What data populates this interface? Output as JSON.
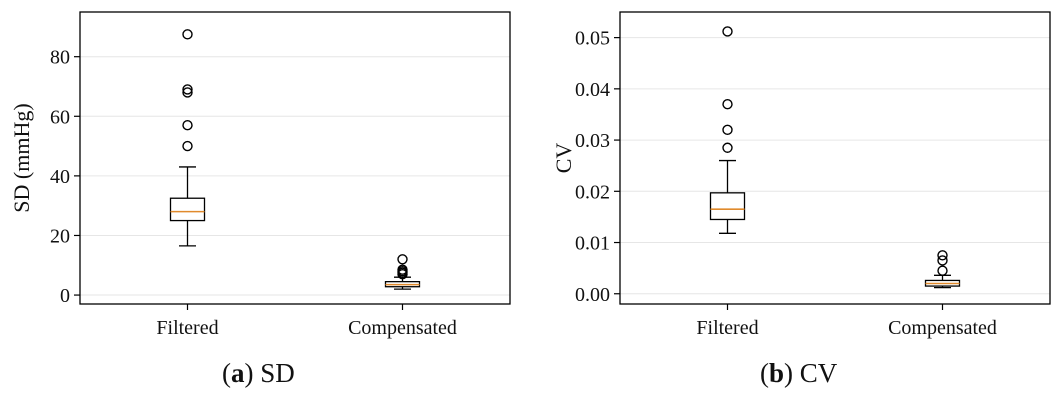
{
  "colors": {
    "median": "#e08a2c",
    "box": "#000000",
    "grid": "#e6e6e6"
  },
  "captions": [
    {
      "letter": "a",
      "text": "SD"
    },
    {
      "letter": "b",
      "text": "CV"
    }
  ],
  "chart_data": [
    {
      "type": "box",
      "title": "",
      "xlabel": "",
      "ylabel": "SD (mmHg)",
      "categories": [
        "Filtered",
        "Compensated"
      ],
      "ylim": [
        -3,
        95
      ],
      "yticks": [
        0,
        20,
        40,
        60,
        80
      ],
      "ytick_labels": [
        "0",
        "20",
        "40",
        "60",
        "80"
      ],
      "grid": true,
      "boxes": [
        {
          "category": "Filtered",
          "whisker_low": 16.5,
          "q1": 25.0,
          "median": 28.0,
          "q3": 32.5,
          "whisker_high": 43.0,
          "outliers": [
            50.0,
            57.0,
            68.0,
            69.0,
            87.5
          ]
        },
        {
          "category": "Compensated",
          "whisker_low": 2.0,
          "q1": 2.8,
          "median": 3.5,
          "q3": 4.5,
          "whisker_high": 6.0,
          "outliers": [
            7.0,
            7.5,
            8.0,
            8.5,
            12.0
          ]
        }
      ]
    },
    {
      "type": "box",
      "title": "",
      "xlabel": "",
      "ylabel": "CV",
      "categories": [
        "Filtered",
        "Compensated"
      ],
      "ylim": [
        -0.002,
        0.055
      ],
      "yticks": [
        0,
        0.01,
        0.02,
        0.03,
        0.04,
        0.05
      ],
      "ytick_labels": [
        "0.00",
        "0.01",
        "0.02",
        "0.03",
        "0.04",
        "0.05"
      ],
      "grid": true,
      "boxes": [
        {
          "category": "Filtered",
          "whisker_low": 0.0118,
          "q1": 0.0145,
          "median": 0.0165,
          "q3": 0.0197,
          "whisker_high": 0.026,
          "outliers": [
            0.0285,
            0.032,
            0.037,
            0.0512
          ]
        },
        {
          "category": "Compensated",
          "whisker_low": 0.0012,
          "q1": 0.0015,
          "median": 0.002,
          "q3": 0.0026,
          "whisker_high": 0.0036,
          "outliers": [
            0.0045,
            0.0065,
            0.0075
          ]
        }
      ]
    }
  ]
}
